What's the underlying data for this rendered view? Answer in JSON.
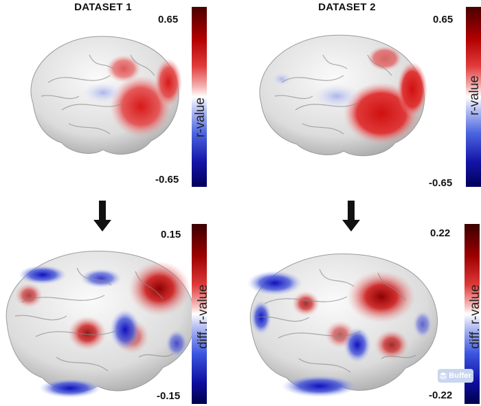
{
  "titles": {
    "dataset1": "DATASET 1",
    "dataset2": "DATASET 2"
  },
  "top_colorbar": {
    "label": "r-value",
    "max": "0.65",
    "min": "-0.65"
  },
  "bottom_left_colorbar": {
    "label": "diff. r-value",
    "max": "0.15",
    "min": "-0.15"
  },
  "bottom_right_colorbar": {
    "label": "diff. r-value",
    "max": "0.22",
    "min": "-0.22"
  },
  "badge": {
    "icon": "buffer-layers-icon",
    "label": "Buffer"
  },
  "colors": {
    "positive": "#c00000",
    "negative": "#1a1ad0",
    "neutral": "#ffffff"
  }
}
